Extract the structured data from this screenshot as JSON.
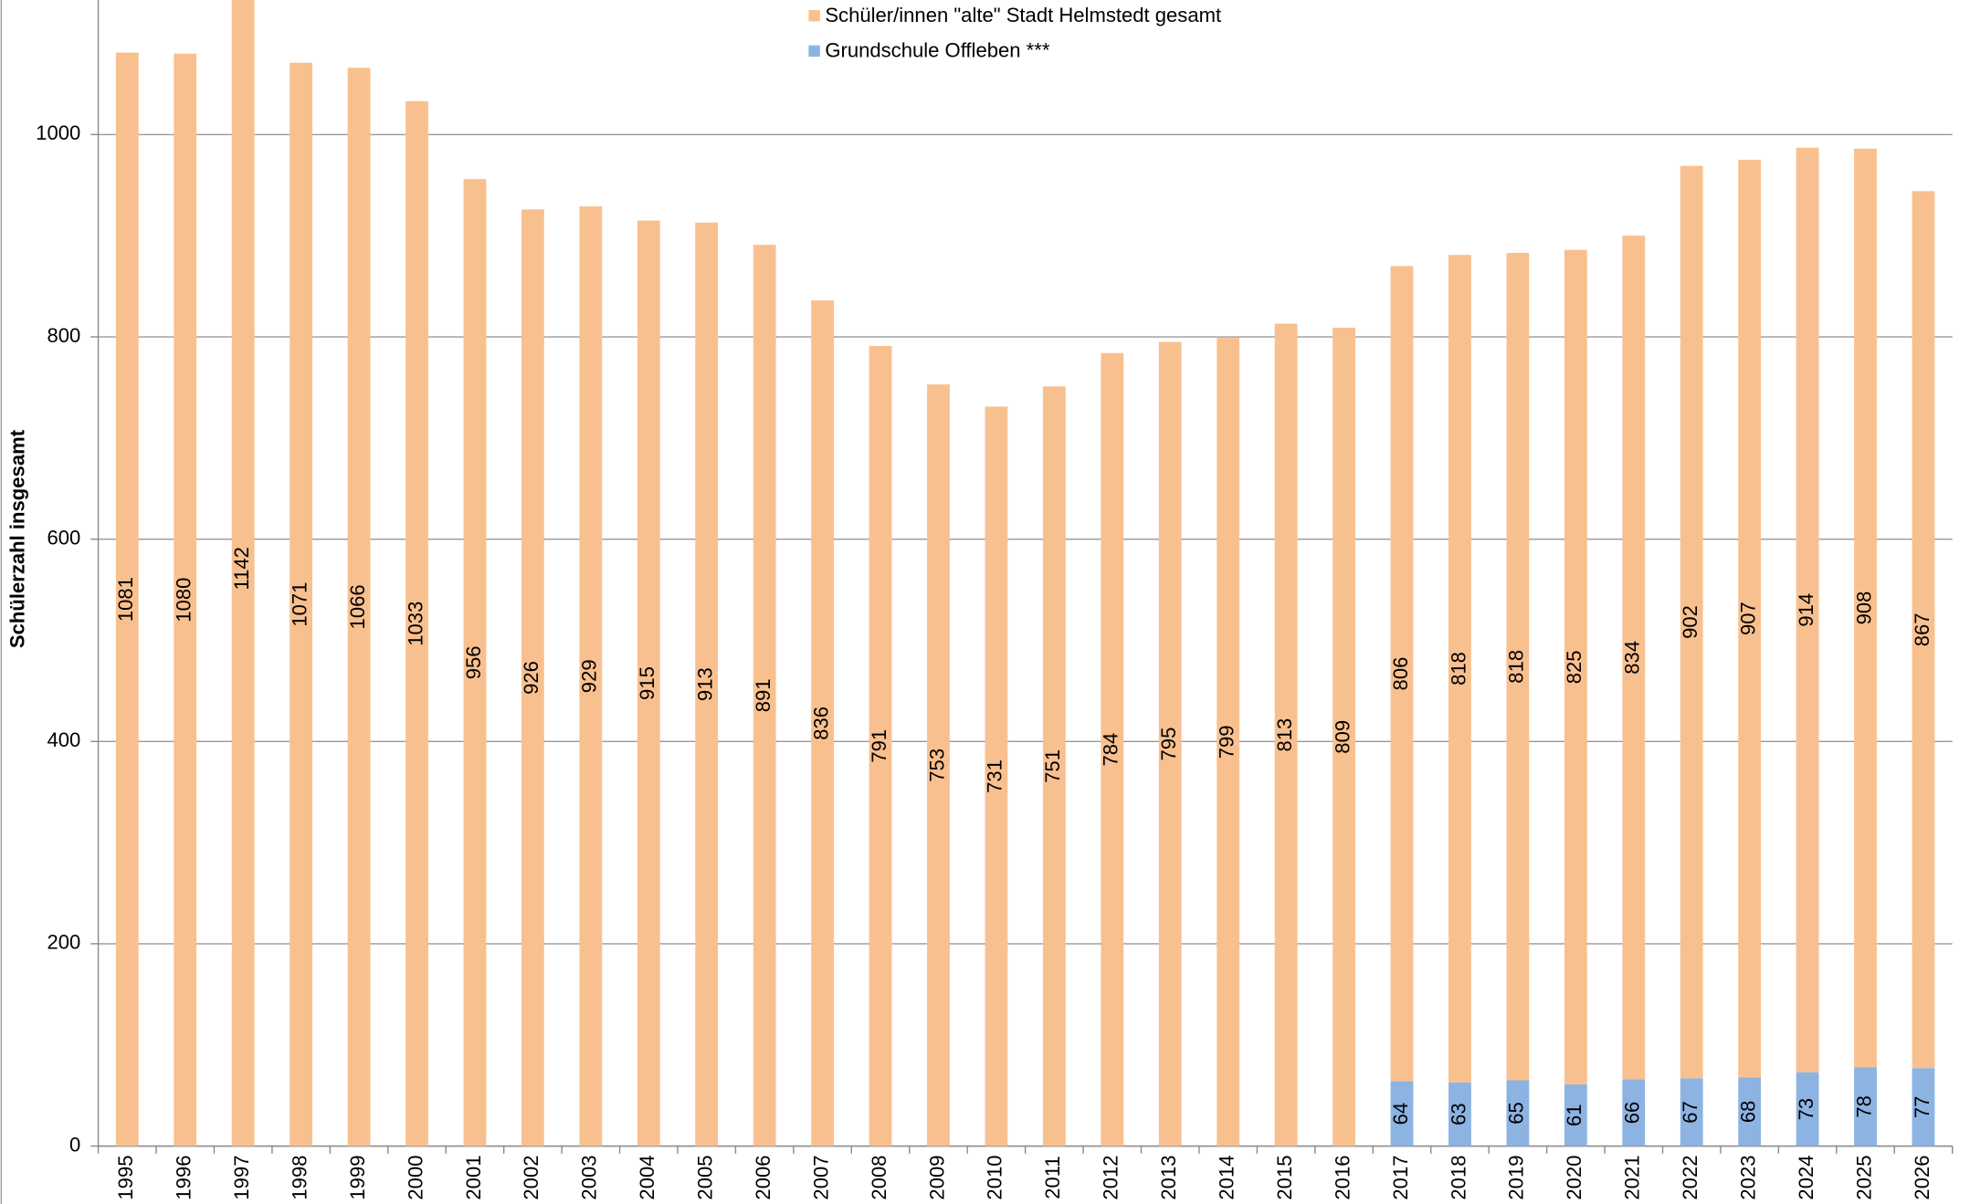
{
  "chart_data": {
    "type": "stacked_bar",
    "y_label": "Schülerzahl insgesamt",
    "categories": [
      "1995",
      "1996",
      "1997",
      "1998",
      "1999",
      "2000",
      "2001",
      "2002",
      "2003",
      "2004",
      "2005",
      "2006",
      "2007",
      "2008",
      "2009",
      "2010",
      "2011",
      "2012",
      "2013",
      "2014",
      "2015",
      "2016",
      "2017",
      "2018",
      "2019",
      "2020",
      "2021",
      "2022",
      "2023",
      "2024",
      "2025",
      "2026"
    ],
    "series": [
      {
        "name": "Schüler/innen \"alte\" Stadt Helmstedt gesamt",
        "color": "#f9c08f",
        "values": [
          1081,
          1080,
          1142,
          1071,
          1066,
          1033,
          956,
          926,
          929,
          915,
          913,
          891,
          836,
          791,
          753,
          731,
          751,
          784,
          795,
          799,
          813,
          809,
          806,
          818,
          818,
          825,
          834,
          902,
          907,
          914,
          908,
          867
        ]
      },
      {
        "name": "Grundschule Offleben ***",
        "color": "#8db3e2",
        "values": [
          null,
          null,
          null,
          null,
          null,
          null,
          null,
          null,
          null,
          null,
          null,
          null,
          null,
          null,
          null,
          null,
          null,
          null,
          null,
          null,
          null,
          null,
          64,
          63,
          65,
          61,
          66,
          67,
          68,
          73,
          78,
          77
        ]
      }
    ],
    "stack_order": [
      1,
      0
    ],
    "ylim": [
      0,
      1133
    ],
    "yticks": [
      0,
      200,
      400,
      600,
      800,
      1000
    ],
    "grid": true
  }
}
